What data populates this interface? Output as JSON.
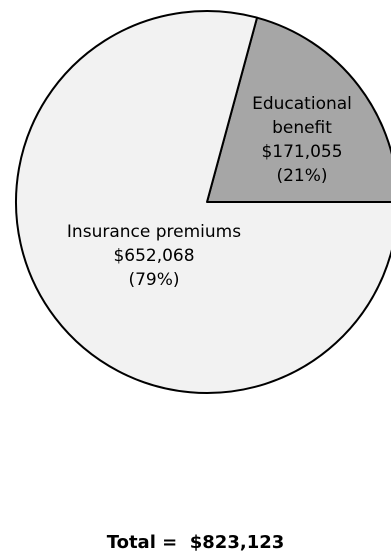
{
  "chart_data": {
    "type": "pie",
    "title": "",
    "slices": [
      {
        "label_lines": [
          "Educational",
          "benefit"
        ],
        "value": 171055,
        "value_text": "$171,055",
        "percent_text": "(21%)",
        "color": "#a6a6a6"
      },
      {
        "label_lines": [
          "Insurance premiums"
        ],
        "value": 652068,
        "value_text": "$652,068",
        "percent_text": "(79%)",
        "color": "#f2f2f2"
      }
    ],
    "total_text": "Total =  $823,123",
    "outline_color": "#000000"
  }
}
